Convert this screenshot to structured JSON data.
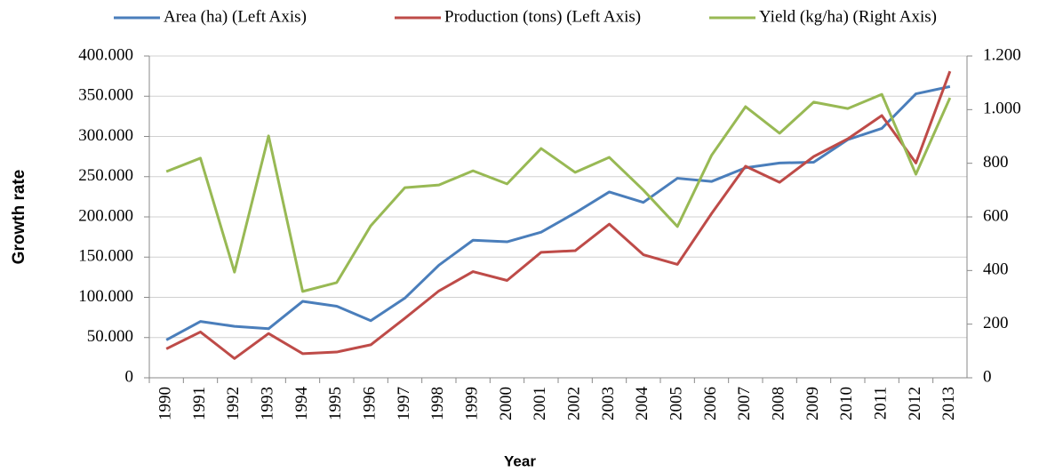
{
  "chart_data": {
    "type": "line",
    "x_label": "Year",
    "y_label": "Growth rate",
    "categories": [
      "1990",
      "1991",
      "1992",
      "1993",
      "1994",
      "1995",
      "1996",
      "1997",
      "1998",
      "1999",
      "2000",
      "2001",
      "2002",
      "2003",
      "2004",
      "2005",
      "2006",
      "2007",
      "2008",
      "2009",
      "2010",
      "2011",
      "2012",
      "2013"
    ],
    "series": [
      {
        "name": "Area (ha) (Left Axis)",
        "color": "#4a7ebb",
        "values": [
          47000,
          70000,
          64000,
          61000,
          95000,
          89000,
          71000,
          99000,
          140000,
          171000,
          169000,
          181000,
          205000,
          231000,
          218000,
          248000,
          244000,
          261000,
          267000,
          268000,
          296000,
          310000,
          353000,
          362000
        ]
      },
      {
        "name": "Production (tons) (Left Axis)",
        "color": "#be4b48",
        "values": [
          36000,
          57000,
          24000,
          55000,
          30000,
          32000,
          41000,
          74000,
          108000,
          132000,
          121000,
          156000,
          158000,
          191000,
          153000,
          141000,
          204000,
          263000,
          243000,
          275000,
          297000,
          326000,
          267000,
          381000
        ]
      },
      {
        "name": "Yield (kg/ha) (Right Axis)",
        "color": "#98b954",
        "axis": "y2",
        "values": [
          769,
          819,
          394,
          902,
          322,
          355,
          567,
          709,
          719,
          772,
          723,
          855,
          766,
          822,
          700,
          564,
          829,
          1011,
          912,
          1028,
          1004,
          1057,
          759,
          1044
        ]
      }
    ],
    "ylim": [
      0,
      400000
    ],
    "yticks": [
      0,
      {
        "value": 50000,
        "label": "50.000"
      },
      {
        "value": 100000,
        "label": "100.000"
      },
      {
        "value": 150000,
        "label": "150.000"
      },
      {
        "value": 200000,
        "label": "200.000"
      },
      {
        "value": 250000,
        "label": "250.000"
      },
      {
        "value": 300000,
        "label": "300.000"
      },
      {
        "value": 350000,
        "label": "350.000"
      },
      {
        "value": 400000,
        "label": "400.000"
      }
    ],
    "y2lim": [
      0,
      1200
    ],
    "y2ticks": [
      0,
      200,
      400,
      600,
      800,
      {
        "value": 1000,
        "label": "1.000"
      },
      {
        "value": 1200,
        "label": "1.200"
      }
    ],
    "grid": true,
    "legend": "top"
  }
}
